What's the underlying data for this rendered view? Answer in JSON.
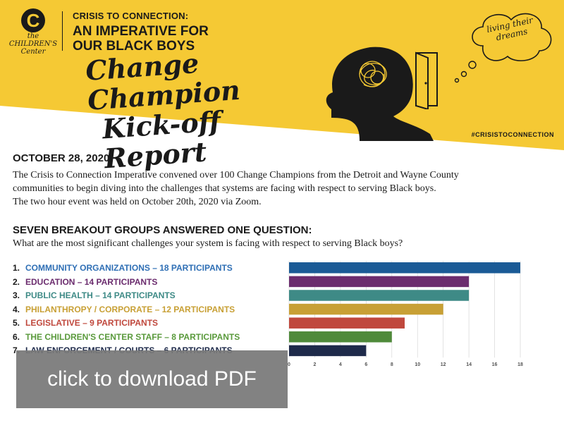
{
  "header": {
    "logo_text_lines": [
      "the",
      "CHILDREN'S",
      "Center"
    ],
    "kicker": "CRISIS TO CONNECTION:",
    "headline_line1": "AN IMPERATIVE FOR",
    "headline_line2": "OUR BLACK BOYS",
    "script_title_line1": "Change Champion",
    "script_title_line2": "Kick-off Report",
    "bubble_line1": "living their",
    "bubble_line2": "dreams",
    "hashtag": "#CRISISTOCONNECTION",
    "band_color": "#f5c934"
  },
  "body": {
    "date": "OCTOBER 28, 2020",
    "intro_line1": "The Crisis to Connection Imperative convened over 100 Change Champions from the Detroit and Wayne County",
    "intro_line2": "communities to begin diving into the challenges that systems are facing with respect to serving Black boys.",
    "intro_line3": "The two hour event was held on October 20th, 2020 via Zoom.",
    "question_heading": "SEVEN BREAKOUT GROUPS ANSWERED ONE QUESTION:",
    "question_text": "What are the most significant challenges your system is facing with respect to serving Black boys?"
  },
  "groups": [
    {
      "num": "1.",
      "label": "COMMUNITY ORGANIZATIONS – 18 PARTICIPANTS",
      "color": "#2f6fb5"
    },
    {
      "num": "2.",
      "label": "EDUCATION – 14 PARTICIPANTS",
      "color": "#6b2c6e"
    },
    {
      "num": "3.",
      "label": "PUBLIC HEALTH – 14 PARTICIPANTS",
      "color": "#3e8a86"
    },
    {
      "num": "4.",
      "label": "PHILANTHROPY / CORPORATE – 12 PARTICIPANTS",
      "color": "#c8a035"
    },
    {
      "num": "5.",
      "label": "LEGISLATIVE – 9 PARTICIPANTS",
      "color": "#c0483d"
    },
    {
      "num": "6.",
      "label": "THE CHILDREN'S CENTER STAFF – 8 PARTICIPANTS",
      "color": "#5a9a3c"
    },
    {
      "num": "7.",
      "label": "LAW ENFORCEMENT / COURTS – 6 PARTICIPANTS",
      "color": "#1e2a4a"
    }
  ],
  "chart_data": {
    "type": "bar",
    "orientation": "horizontal",
    "categories": [
      "Community Organizations",
      "Education",
      "Public Health",
      "Philanthropy / Corporate",
      "Legislative",
      "The Children's Center Staff",
      "Law Enforcement / Courts"
    ],
    "values": [
      18,
      14,
      14,
      12,
      9,
      8,
      6
    ],
    "colors": [
      "#1a5a96",
      "#6b2c6e",
      "#3e8a86",
      "#c8a035",
      "#c0483d",
      "#4f8a3a",
      "#1e2a4a"
    ],
    "xlim": [
      0,
      18
    ],
    "xticks": [
      "0",
      "2",
      "4",
      "6",
      "8",
      "10",
      "12",
      "14",
      "16",
      "18"
    ],
    "grid": true
  },
  "download": {
    "label": "click to download PDF"
  }
}
